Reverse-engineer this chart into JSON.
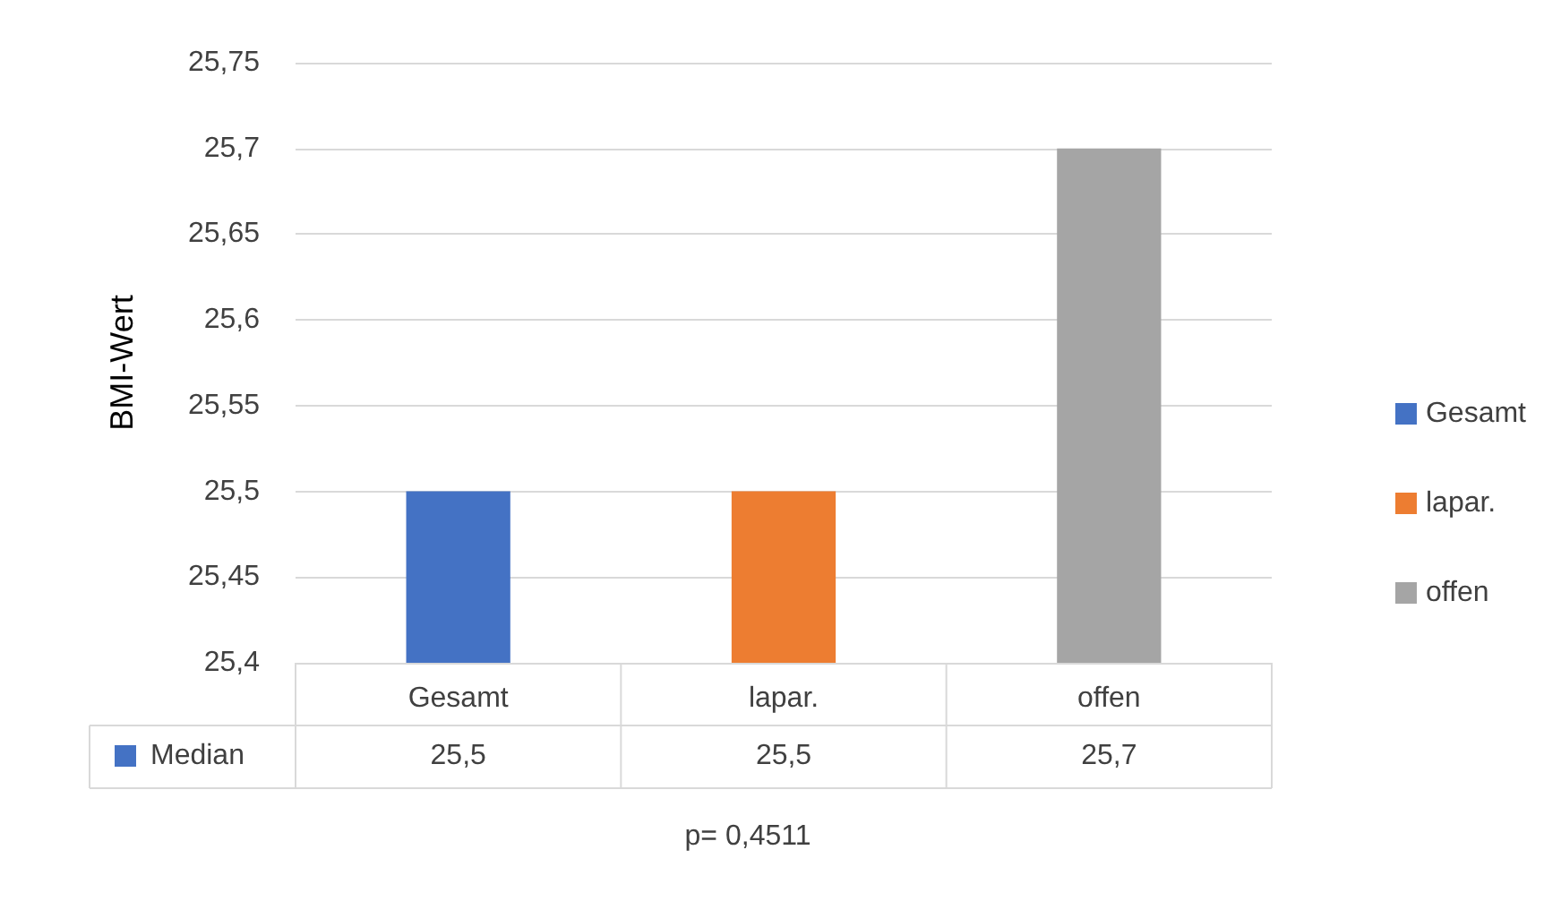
{
  "chart_data": {
    "type": "bar",
    "ylabel": "BMI-Wert",
    "categories": [
      "Gesamt",
      "lapar.",
      "offen"
    ],
    "series": [
      {
        "name": "Gesamt",
        "color": "#4472c4",
        "values": [
          25.5,
          null,
          null
        ],
        "value_labels": [
          "25,5",
          null,
          null
        ]
      },
      {
        "name": "lapar.",
        "color": "#ed7d31",
        "values": [
          null,
          25.5,
          null
        ],
        "value_labels": [
          null,
          "25,5",
          null
        ]
      },
      {
        "name": "offen",
        "color": "#a5a5a5",
        "values": [
          null,
          null,
          25.7
        ],
        "value_labels": [
          null,
          null,
          "25,7"
        ]
      }
    ],
    "ylim": [
      25.4,
      25.75
    ],
    "yticks": [
      {
        "value": 25.4,
        "label": "25,4"
      },
      {
        "value": 25.45,
        "label": "25,45"
      },
      {
        "value": 25.5,
        "label": "25,5"
      },
      {
        "value": 25.55,
        "label": "25,55"
      },
      {
        "value": 25.6,
        "label": "25,6"
      },
      {
        "value": 25.65,
        "label": "25,65"
      },
      {
        "value": 25.7,
        "label": "25,7"
      },
      {
        "value": 25.75,
        "label": "25,75"
      }
    ],
    "grid": "y",
    "legend": "right",
    "annotations": [
      "Median",
      "p= 0,4511"
    ]
  }
}
